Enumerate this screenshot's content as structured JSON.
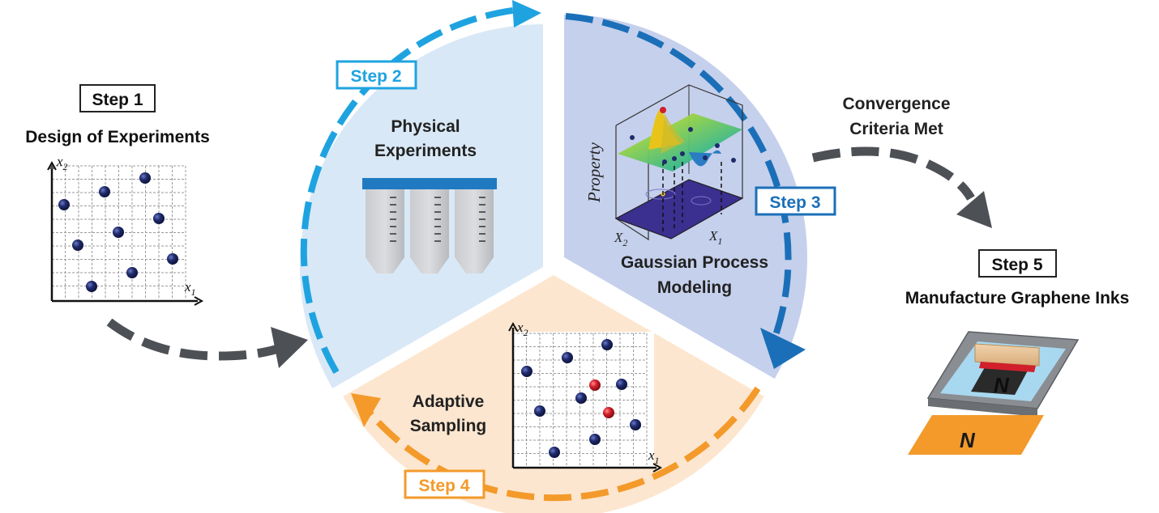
{
  "step1": {
    "badge": "Step 1",
    "title": "Design of Experiments",
    "x_label": "x",
    "x_sub": "1",
    "y_label": "x",
    "y_sub": "2"
  },
  "step2": {
    "badge": "Step 2",
    "title_line1": "Physical",
    "title_line2": "Experiments"
  },
  "step3": {
    "badge": "Step 3",
    "title_line1": "Gaussian Process",
    "title_line2": "Modeling",
    "z_axis_label": "Property",
    "x_axis_label": "X",
    "x_axis_sub": "1",
    "y_axis_label": "X",
    "y_axis_sub": "2"
  },
  "step4": {
    "badge": "Step 4",
    "title_line1": "Adaptive",
    "title_line2": "Sampling",
    "x_label": "x",
    "x_sub": "1",
    "y_label": "x",
    "y_sub": "2"
  },
  "convergence": {
    "line1": "Convergence",
    "line2": "Criteria Met"
  },
  "step5": {
    "badge": "Step 5",
    "title": "Manufacture Graphene Inks",
    "print_letter": "N"
  },
  "colors": {
    "step2_blue": "#1fa3e0",
    "step3_blue": "#1b6fb8",
    "step4_orange": "#f39a2b",
    "arrow_gray": "#4d5156",
    "sector_light_blue": "#d9e8f6",
    "sector_lavender": "#c5d0ec",
    "sector_peach": "#fde6cf",
    "dot_navy": "#1f2a6b",
    "dot_red": "#d11f2b"
  }
}
